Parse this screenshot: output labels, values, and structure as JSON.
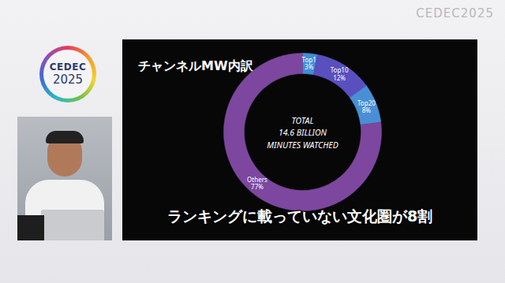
{
  "logo": {
    "line1": "CEDEC",
    "line2": "2025"
  },
  "watermark": "CEDEC2025",
  "chart_data": {
    "type": "donut",
    "title": "チャンネルMW内訳",
    "categories": [
      "Top1",
      "Top10",
      "Top20",
      "Others"
    ],
    "values": [
      3,
      12,
      8,
      77
    ],
    "value_labels": [
      "3%",
      "12%",
      "8%",
      "77%"
    ],
    "colors": [
      "#3f8fd8",
      "#5a4fbf",
      "#4a8fd6",
      "#7d479f"
    ],
    "data_labels": true,
    "annotations": [
      "TOTAL",
      "14.6 BILLION",
      "MINUTES WATCHED"
    ],
    "caption": "ランキングに載っていない文化圏が8割"
  }
}
